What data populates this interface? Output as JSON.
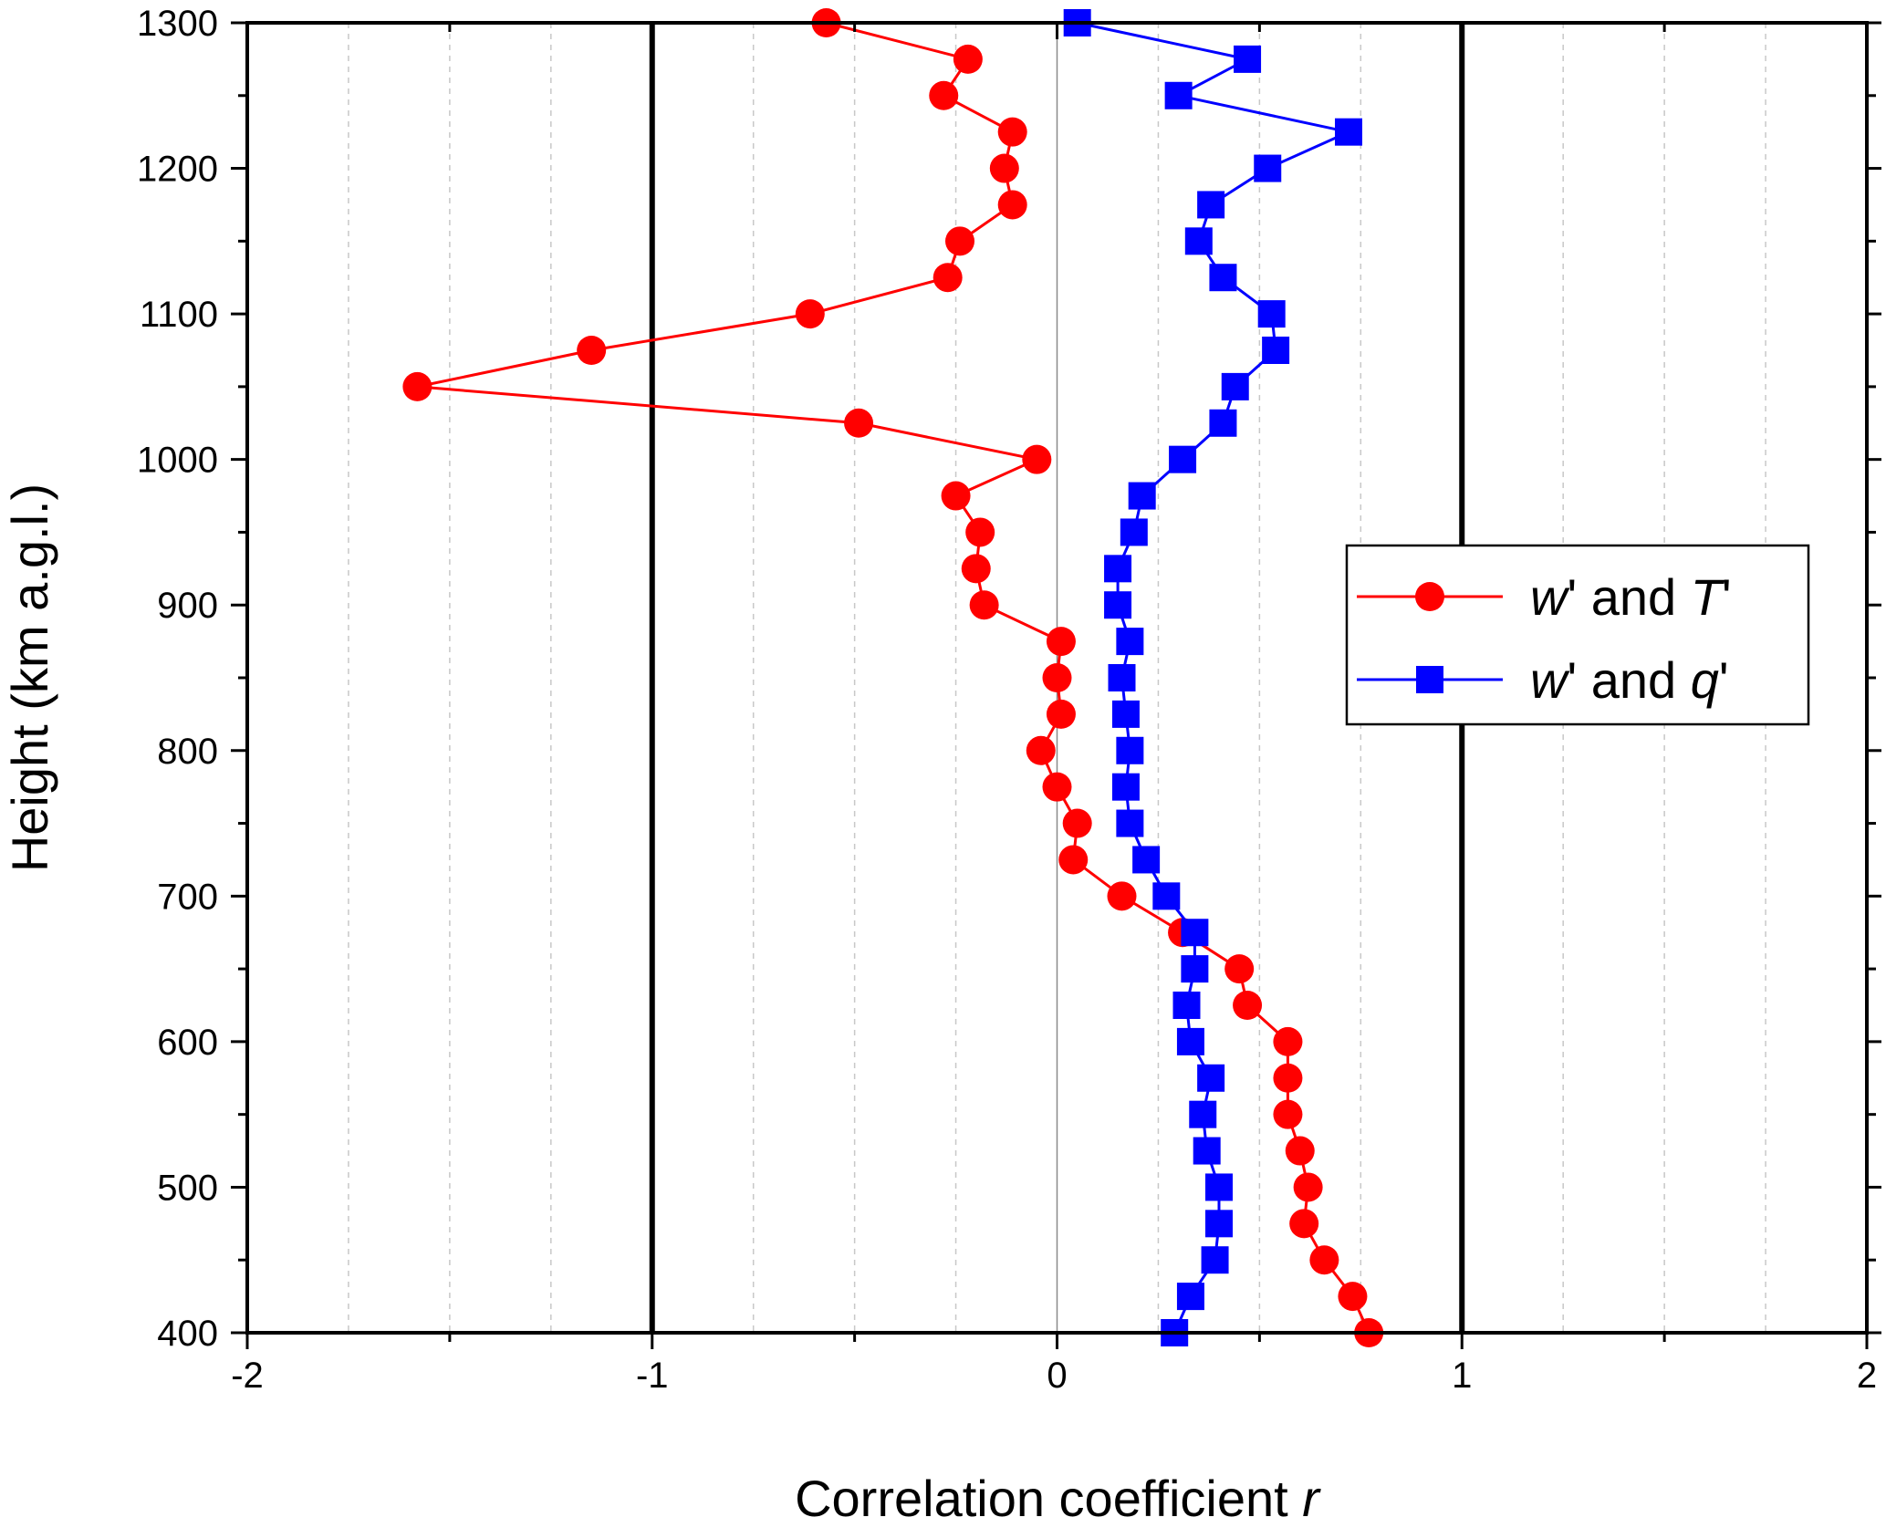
{
  "chart_data": {
    "type": "scatter",
    "xlabel_prefix": "Correlation coefficient ",
    "xlabel_var": "r",
    "ylabel": "Height (km a.g.l.)",
    "xlim": [
      -2,
      2
    ],
    "ylim": [
      400,
      1300
    ],
    "x_ticks": [
      -2,
      -1,
      0,
      1,
      2
    ],
    "y_ticks": [
      400,
      500,
      600,
      700,
      800,
      900,
      1000,
      1100,
      1200,
      1300
    ],
    "reference_lines_x": [
      -1,
      1
    ],
    "grid": "vertical dashed",
    "legend_position": "right",
    "series": [
      {
        "name_var1": "w",
        "name_mid": "' and ",
        "name_var2": "T",
        "name_end": "'",
        "color": "#ff0000",
        "marker": "circle",
        "points": [
          [
            -0.57,
            1300
          ],
          [
            -0.22,
            1275
          ],
          [
            -0.28,
            1250
          ],
          [
            -0.11,
            1225
          ],
          [
            -0.13,
            1200
          ],
          [
            -0.11,
            1175
          ],
          [
            -0.24,
            1150
          ],
          [
            -0.27,
            1125
          ],
          [
            -0.61,
            1100
          ],
          [
            -1.15,
            1075
          ],
          [
            -1.58,
            1050
          ],
          [
            -0.49,
            1025
          ],
          [
            -0.05,
            1000
          ],
          [
            -0.25,
            975
          ],
          [
            -0.19,
            950
          ],
          [
            -0.2,
            925
          ],
          [
            -0.18,
            900
          ],
          [
            0.01,
            875
          ],
          [
            0.0,
            850
          ],
          [
            0.01,
            825
          ],
          [
            -0.04,
            800
          ],
          [
            0.0,
            775
          ],
          [
            0.05,
            750
          ],
          [
            0.04,
            725
          ],
          [
            0.16,
            700
          ],
          [
            0.31,
            675
          ],
          [
            0.45,
            650
          ],
          [
            0.47,
            625
          ],
          [
            0.57,
            600
          ],
          [
            0.57,
            575
          ],
          [
            0.57,
            550
          ],
          [
            0.6,
            525
          ],
          [
            0.62,
            500
          ],
          [
            0.61,
            475
          ],
          [
            0.66,
            450
          ],
          [
            0.73,
            425
          ],
          [
            0.77,
            400
          ]
        ]
      },
      {
        "name_var1": "w",
        "name_mid": "' and ",
        "name_var2": "q",
        "name_end": "'",
        "color": "#0000ff",
        "marker": "square",
        "points": [
          [
            0.05,
            1300
          ],
          [
            0.47,
            1275
          ],
          [
            0.3,
            1250
          ],
          [
            0.72,
            1225
          ],
          [
            0.52,
            1200
          ],
          [
            0.38,
            1175
          ],
          [
            0.35,
            1150
          ],
          [
            0.41,
            1125
          ],
          [
            0.53,
            1100
          ],
          [
            0.54,
            1075
          ],
          [
            0.44,
            1050
          ],
          [
            0.41,
            1025
          ],
          [
            0.31,
            1000
          ],
          [
            0.21,
            975
          ],
          [
            0.19,
            950
          ],
          [
            0.15,
            925
          ],
          [
            0.15,
            900
          ],
          [
            0.18,
            875
          ],
          [
            0.16,
            850
          ],
          [
            0.17,
            825
          ],
          [
            0.18,
            800
          ],
          [
            0.17,
            775
          ],
          [
            0.18,
            750
          ],
          [
            0.22,
            725
          ],
          [
            0.27,
            700
          ],
          [
            0.34,
            675
          ],
          [
            0.34,
            650
          ],
          [
            0.32,
            625
          ],
          [
            0.33,
            600
          ],
          [
            0.38,
            575
          ],
          [
            0.36,
            550
          ],
          [
            0.37,
            525
          ],
          [
            0.4,
            500
          ],
          [
            0.4,
            475
          ],
          [
            0.39,
            450
          ],
          [
            0.33,
            425
          ],
          [
            0.29,
            400
          ]
        ]
      }
    ]
  }
}
